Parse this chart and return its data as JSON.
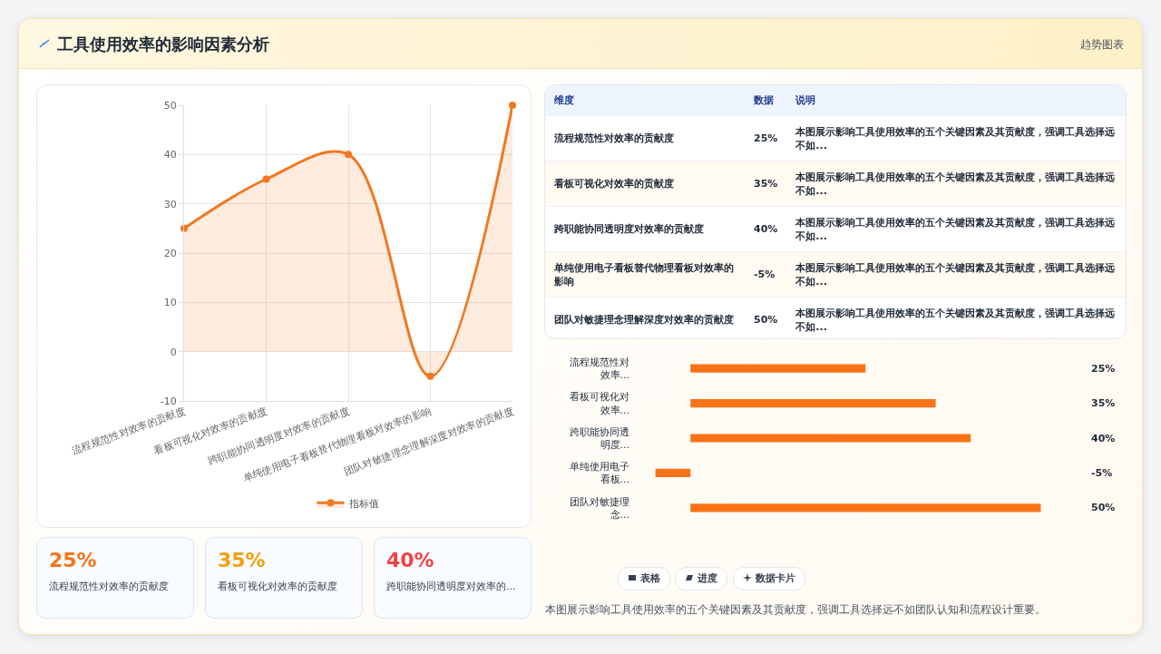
{
  "chart_data": [
    {
      "type": "other",
      "title": "工具使用效率的影响因素分析",
      "subtitle": "趋势图表"
    },
    {
      "type": "line",
      "categories": [
        "流程规范性对效率的贡献度",
        "看板可视化对效率的贡献度",
        "跨职能协同透明度对效率的贡献度",
        "单纯使用电子看板替代物理看板对效率的影响",
        "团队对敏捷理念理解深度对效率的贡献度"
      ],
      "series": [
        {
          "name": "指标值",
          "color": "#f07820",
          "values": [
            25,
            35,
            40,
            -5,
            50
          ]
        }
      ],
      "ylim": [
        -10,
        50
      ],
      "yticks": [
        -10,
        0,
        10,
        20,
        30,
        40,
        50
      ],
      "grid": true,
      "legend": "bottom",
      "marker": "circle",
      "line_style": "solid"
    },
    {
      "type": "other",
      "categories": [
        "流程规范性对效率的贡献度",
        "看板可视化对效率的贡献度",
        "跨职能协同透明度对效率的贡献度",
        "单纯使用电子看板替代物理看板对效率的影响",
        "团队对敏捷理念理解深度对效率的贡献度"
      ],
      "value_labels": [
        "25%",
        "35%",
        "40%",
        "-5%",
        "50%"
      ],
      "annotations": [
        "维度",
        "数据",
        "说明",
        "本图展示影响工具使用效率的五个关键因素及其贡献度，强调工具选择远不如...",
        "本图展示影响工具使用效率的五个关键因素及其贡献度，强调工具选择远不如...",
        "本图展示影响工具使用效率的五个关键因素及其贡献度，强调工具选择远不如...",
        "本图展示影响工具使用效率的五个关键因素及其贡献度，强调工具选择远不如...",
        "本图展示影响工具使用效率的五个关键因素及其贡献度，强调工具选择远不如..."
      ]
    },
    {
      "type": "bar",
      "orientation": "horizontal",
      "categories": [
        "流程规范性对效率...",
        "看板可视化对效率...",
        "跨职能协同透明度...",
        "单纯使用电子看板...",
        "团队对敏捷理念..."
      ],
      "values": [
        25,
        35,
        40,
        -5,
        50
      ],
      "value_labels": [
        "25%",
        "35%",
        "40%",
        "-5%",
        "50%"
      ],
      "color": "#f97316",
      "tick_labels": "y",
      "annotations": [
        "表格",
        "进度",
        "数据卡片",
        "本图展示影响工具使用效率的五个关键因素及其贡献度，强调工具选择远不如团队认知和流程设计重要。"
      ]
    },
    {
      "type": "other",
      "categories": [
        "流程规范性对效率的贡献度",
        "看板可视化对效率的贡献度",
        "跨职能协同透明度对效率的..."
      ],
      "value_labels": [
        "25%",
        "35%",
        "40%"
      ]
    }
  ]
}
